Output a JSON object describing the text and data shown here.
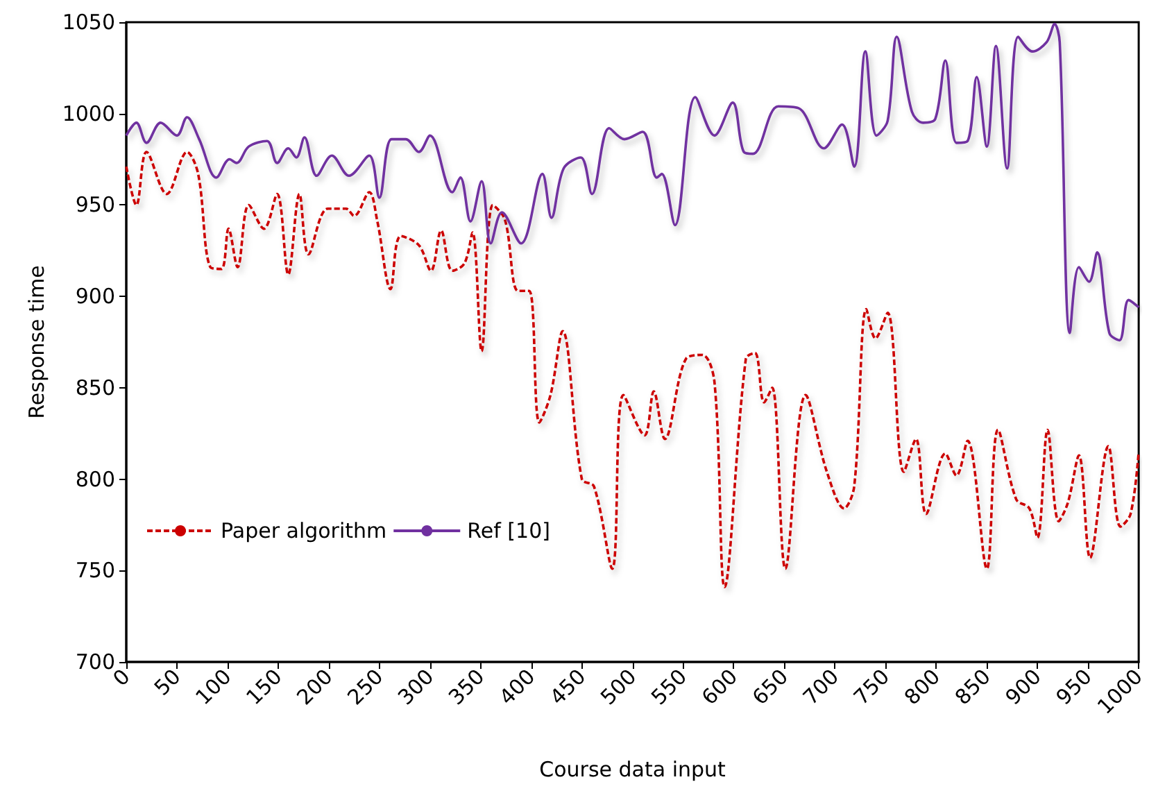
{
  "chart_data": {
    "type": "line",
    "xlabel": "Course data input",
    "ylabel": "Response time",
    "xlim": [
      0,
      1000
    ],
    "xticks": [
      0,
      50,
      100,
      150,
      200,
      250,
      300,
      350,
      400,
      450,
      500,
      550,
      600,
      650,
      700,
      750,
      800,
      850,
      900,
      950,
      1000
    ],
    "ylim": [
      700,
      1050
    ],
    "yticks": [
      700,
      750,
      800,
      850,
      900,
      950,
      1000,
      1050
    ],
    "grid": false,
    "legend": "bottom left",
    "marker": "none",
    "series": [
      {
        "name": "Paper algorithm",
        "color": "#cc0000",
        "line_style": "dashed",
        "x": [
          0,
          10,
          20,
          40,
          60,
          71,
          83,
          94,
          101,
          110,
          121,
          136,
          149,
          160,
          171,
          180,
          199,
          217,
          225,
          240,
          248,
          261,
          271,
          289,
          301,
          311,
          322,
          334,
          342,
          351,
          362,
          374,
          387,
          398,
          408,
          419,
          431,
          450,
          462,
          480,
          491,
          512,
          521,
          532,
          553,
          569,
          581,
          591,
          612,
          621,
          630,
          638,
          651,
          671,
          692,
          709,
          719,
          731,
          740,
          752,
          768,
          780,
          790,
          809,
          820,
          831,
          850,
          861,
          879,
          892,
          900,
          910,
          921,
          930,
          941,
          952,
          970,
          982,
          992,
          1000
        ],
        "values": [
          971,
          950,
          979,
          956,
          979,
          967,
          916,
          915,
          937,
          916,
          950,
          937,
          956,
          912,
          956,
          923,
          948,
          948,
          944,
          957,
          941,
          904,
          933,
          928,
          914,
          936,
          914,
          918,
          935,
          870,
          950,
          942,
          903,
          903,
          831,
          846,
          881,
          800,
          796,
          751,
          846,
          824,
          848,
          822,
          866,
          868,
          853,
          741,
          866,
          869,
          842,
          850,
          751,
          846,
          804,
          784,
          796,
          893,
          877,
          891,
          804,
          822,
          781,
          814,
          802,
          821,
          751,
          827,
          789,
          784,
          768,
          827,
          777,
          787,
          813,
          757,
          818,
          774,
          781,
          815
        ]
      },
      {
        "name": "Ref [10]",
        "color": "#7030a0",
        "line_style": "solid",
        "x": [
          0,
          10,
          20,
          34,
          50,
          60,
          72,
          89,
          102,
          109,
          121,
          139,
          149,
          160,
          168,
          176,
          188,
          203,
          220,
          240,
          250,
          262,
          276,
          289,
          300,
          322,
          330,
          340,
          351,
          360,
          371,
          390,
          411,
          420,
          432,
          449,
          460,
          477,
          492,
          510,
          524,
          529,
          542,
          562,
          581,
          599,
          610,
          619,
          644,
          664,
          689,
          707,
          719,
          730,
          741,
          752,
          761,
          776,
          787,
          799,
          809,
          820,
          831,
          840,
          850,
          859,
          870,
          881,
          895,
          909,
          917,
          922,
          932,
          941,
          951,
          959,
          971,
          981,
          990,
          1000
        ],
        "values": [
          988,
          995,
          984,
          995,
          988,
          998,
          986,
          965,
          975,
          973,
          982,
          985,
          973,
          981,
          976,
          987,
          966,
          977,
          966,
          977,
          954,
          986,
          986,
          979,
          988,
          957,
          965,
          941,
          963,
          929,
          946,
          929,
          967,
          943,
          970,
          976,
          956,
          992,
          986,
          990,
          965,
          967,
          939,
          1009,
          988,
          1006,
          979,
          978,
          1004,
          1003,
          981,
          994,
          971,
          1034,
          988,
          996,
          1042,
          1001,
          995,
          997,
          1029,
          984,
          985,
          1020,
          982,
          1037,
          970,
          1042,
          1034,
          1039,
          1049,
          1039,
          880,
          916,
          908,
          924,
          880,
          876,
          898,
          894
        ]
      }
    ]
  }
}
